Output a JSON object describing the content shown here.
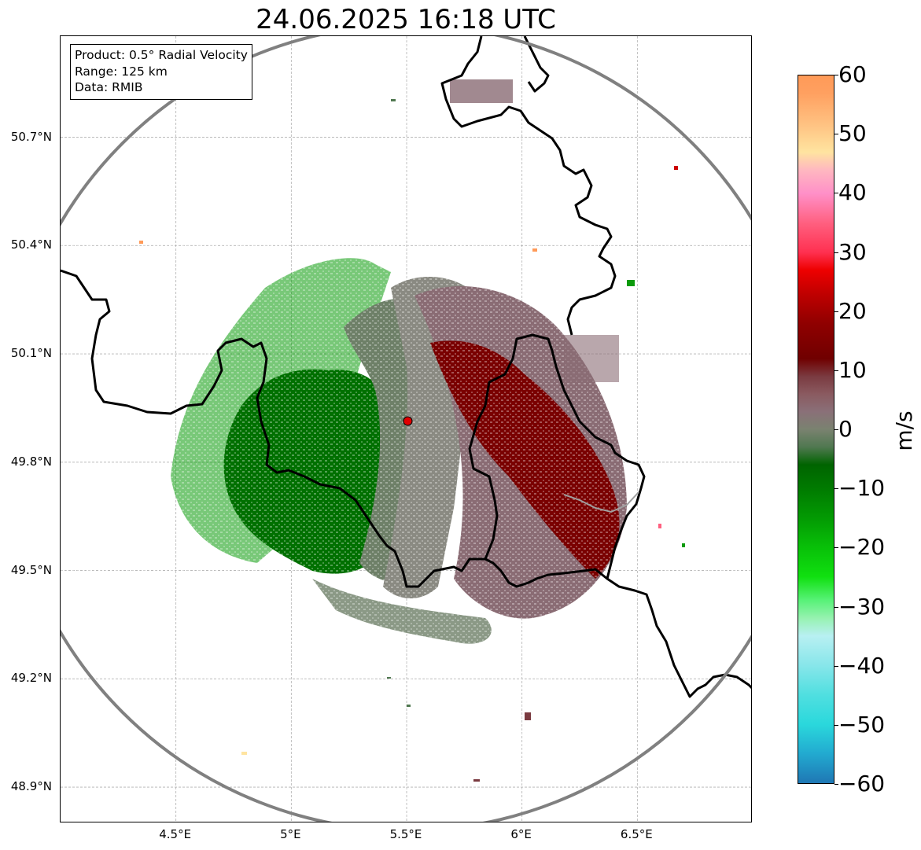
{
  "title": "24.06.2025 16:18 UTC",
  "info_box": {
    "product": "Product: 0.5° Radial Velocity",
    "range": "Range: 125 km",
    "source": "Data: RMIB"
  },
  "map": {
    "lon_range": [
      4.0,
      7.0
    ],
    "lat_range": [
      48.8,
      50.98
    ],
    "radar_site": {
      "lon": 5.505,
      "lat": 49.914
    },
    "range_ring_km": 125,
    "lat_ticks": [
      {
        "value": 48.9,
        "label": "48.9°N"
      },
      {
        "value": 49.2,
        "label": "49.2°N"
      },
      {
        "value": 49.5,
        "label": "49.5°N"
      },
      {
        "value": 49.8,
        "label": "49.8°N"
      },
      {
        "value": 50.1,
        "label": "50.1°N"
      },
      {
        "value": 50.4,
        "label": "50.4°N"
      },
      {
        "value": 50.7,
        "label": "50.7°N"
      }
    ],
    "lon_ticks": [
      {
        "value": 4.5,
        "label": "4.5°E"
      },
      {
        "value": 5.0,
        "label": "5°E"
      },
      {
        "value": 5.5,
        "label": "5.5°E"
      },
      {
        "value": 6.0,
        "label": "6°E"
      },
      {
        "value": 6.5,
        "label": "6.5°E"
      }
    ],
    "colors": {
      "range_ring": "#808080",
      "borders": "#000000",
      "grid": "#b0b0b0",
      "radar_site": "#e00000"
    }
  },
  "colorbar": {
    "label": "m/s",
    "min": -60,
    "max": 60,
    "ticks": [
      {
        "value": 60,
        "label": "60"
      },
      {
        "value": 50,
        "label": "50"
      },
      {
        "value": 40,
        "label": "40"
      },
      {
        "value": 30,
        "label": "30"
      },
      {
        "value": 20,
        "label": "20"
      },
      {
        "value": 10,
        "label": "10"
      },
      {
        "value": 0,
        "label": "0"
      },
      {
        "value": -10,
        "label": "−10"
      },
      {
        "value": -20,
        "label": "−20"
      },
      {
        "value": -30,
        "label": "−30"
      },
      {
        "value": -40,
        "label": "−40"
      },
      {
        "value": -50,
        "label": "−50"
      },
      {
        "value": -60,
        "label": "−60"
      }
    ],
    "stops": [
      {
        "value": -60,
        "color": "#1f77b4"
      },
      {
        "value": -55,
        "color": "#22aad0"
      },
      {
        "value": -50,
        "color": "#2ad8dc"
      },
      {
        "value": -45,
        "color": "#50dfe0"
      },
      {
        "value": -40,
        "color": "#88e6ea"
      },
      {
        "value": -35,
        "color": "#b8f0f2"
      },
      {
        "value": -32,
        "color": "#96f2b0"
      },
      {
        "value": -29,
        "color": "#58f278"
      },
      {
        "value": -25,
        "color": "#10e010"
      },
      {
        "value": -20,
        "color": "#08c008"
      },
      {
        "value": -15,
        "color": "#039a03"
      },
      {
        "value": -10,
        "color": "#007a00"
      },
      {
        "value": -6,
        "color": "#006400"
      },
      {
        "value": -3,
        "color": "#507850"
      },
      {
        "value": 0,
        "color": "#7a8270"
      },
      {
        "value": 3,
        "color": "#8a7078"
      },
      {
        "value": 6,
        "color": "#8a5a60"
      },
      {
        "value": 9,
        "color": "#7a3a40"
      },
      {
        "value": 12,
        "color": "#700000"
      },
      {
        "value": 18,
        "color": "#900000"
      },
      {
        "value": 23,
        "color": "#c00000"
      },
      {
        "value": 27,
        "color": "#ee0000"
      },
      {
        "value": 30,
        "color": "#ff3050"
      },
      {
        "value": 35,
        "color": "#ff6080"
      },
      {
        "value": 40,
        "color": "#ff90c8"
      },
      {
        "value": 44,
        "color": "#ffb8c0"
      },
      {
        "value": 47,
        "color": "#ffe4a0"
      },
      {
        "value": 52,
        "color": "#ffc080"
      },
      {
        "value": 57,
        "color": "#ffa060"
      },
      {
        "value": 60,
        "color": "#ff9a58"
      }
    ]
  }
}
